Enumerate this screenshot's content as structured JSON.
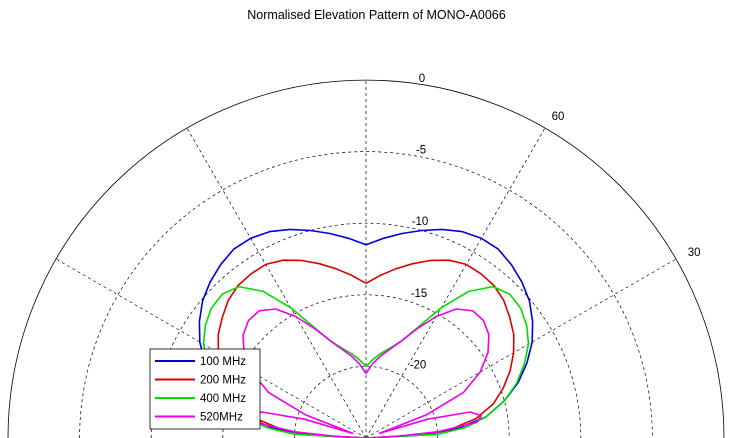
{
  "chart_data": {
    "type": "polar-line",
    "title": "Normalised Elevation Pattern of MONO-A0066",
    "radial_ticks": [
      "0",
      "-5",
      "-10",
      "-15",
      "-20"
    ],
    "angle_ticks": [
      "60",
      "30"
    ],
    "series": [
      {
        "name": "100 MHz",
        "color": "#0000dd",
        "points": [
          [
            0,
            -25
          ],
          [
            3,
            -21
          ],
          [
            6,
            -18.5
          ],
          [
            10,
            -16.5
          ],
          [
            15,
            -15
          ],
          [
            20,
            -13.7
          ],
          [
            25,
            -12.6
          ],
          [
            30,
            -11.6
          ],
          [
            35,
            -10.8
          ],
          [
            40,
            -10.1
          ],
          [
            45,
            -9.6
          ],
          [
            50,
            -9.2
          ],
          [
            55,
            -8.9
          ],
          [
            60,
            -8.9
          ],
          [
            65,
            -9.1
          ],
          [
            70,
            -9.5
          ],
          [
            75,
            -10
          ],
          [
            80,
            -10.5
          ],
          [
            85,
            -11
          ],
          [
            90,
            -11.5
          ]
        ]
      },
      {
        "name": "200 MHz",
        "color": "#dd0000",
        "points": [
          [
            0,
            -25
          ],
          [
            3,
            -21
          ],
          [
            6,
            -19
          ],
          [
            10,
            -17.2
          ],
          [
            15,
            -15.8
          ],
          [
            20,
            -14.8
          ],
          [
            25,
            -13.9
          ],
          [
            30,
            -13.1
          ],
          [
            35,
            -12.4
          ],
          [
            40,
            -11.9
          ],
          [
            45,
            -11.4
          ],
          [
            50,
            -11.1
          ],
          [
            55,
            -11
          ],
          [
            60,
            -11
          ],
          [
            65,
            -11.3
          ],
          [
            70,
            -11.8
          ],
          [
            75,
            -12.4
          ],
          [
            80,
            -13
          ],
          [
            85,
            -13.6
          ],
          [
            90,
            -14.2
          ]
        ]
      },
      {
        "name": "400 MHz",
        "color": "#00dd00",
        "points": [
          [
            0,
            -25
          ],
          [
            3,
            -20
          ],
          [
            6,
            -18
          ],
          [
            10,
            -16.5
          ],
          [
            15,
            -15
          ],
          [
            20,
            -13.8
          ],
          [
            25,
            -12.8
          ],
          [
            30,
            -11.9
          ],
          [
            35,
            -11.3
          ],
          [
            40,
            -10.9
          ],
          [
            45,
            -10.8
          ],
          [
            50,
            -11.2
          ],
          [
            55,
            -12.5
          ],
          [
            60,
            -14.5
          ],
          [
            65,
            -16.5
          ],
          [
            70,
            -17.8
          ],
          [
            75,
            -18.5
          ],
          [
            80,
            -19
          ],
          [
            85,
            -19.5
          ],
          [
            90,
            -20
          ]
        ]
      },
      {
        "name": "520MHz",
        "color": "#ee00ee",
        "points": [
          [
            0,
            -25
          ],
          [
            3,
            -23
          ],
          [
            5,
            -20
          ],
          [
            8,
            -17.2
          ],
          [
            11,
            -16.8
          ],
          [
            14,
            -17.5
          ],
          [
            17,
            -20.5
          ],
          [
            19,
            -24
          ],
          [
            21,
            -20.5
          ],
          [
            25,
            -17.5
          ],
          [
            30,
            -15.8
          ],
          [
            35,
            -14.6
          ],
          [
            40,
            -13.8
          ],
          [
            45,
            -13.4
          ],
          [
            50,
            -13.4
          ],
          [
            55,
            -14
          ],
          [
            60,
            -15.2
          ],
          [
            65,
            -16.6
          ],
          [
            70,
            -17.8
          ],
          [
            75,
            -18.6
          ],
          [
            80,
            -19.2
          ],
          [
            85,
            -19.8
          ],
          [
            90,
            -20.5
          ]
        ]
      }
    ],
    "rlim": [
      -25,
      0
    ],
    "grid": true,
    "legend_position": "bottom-left"
  }
}
